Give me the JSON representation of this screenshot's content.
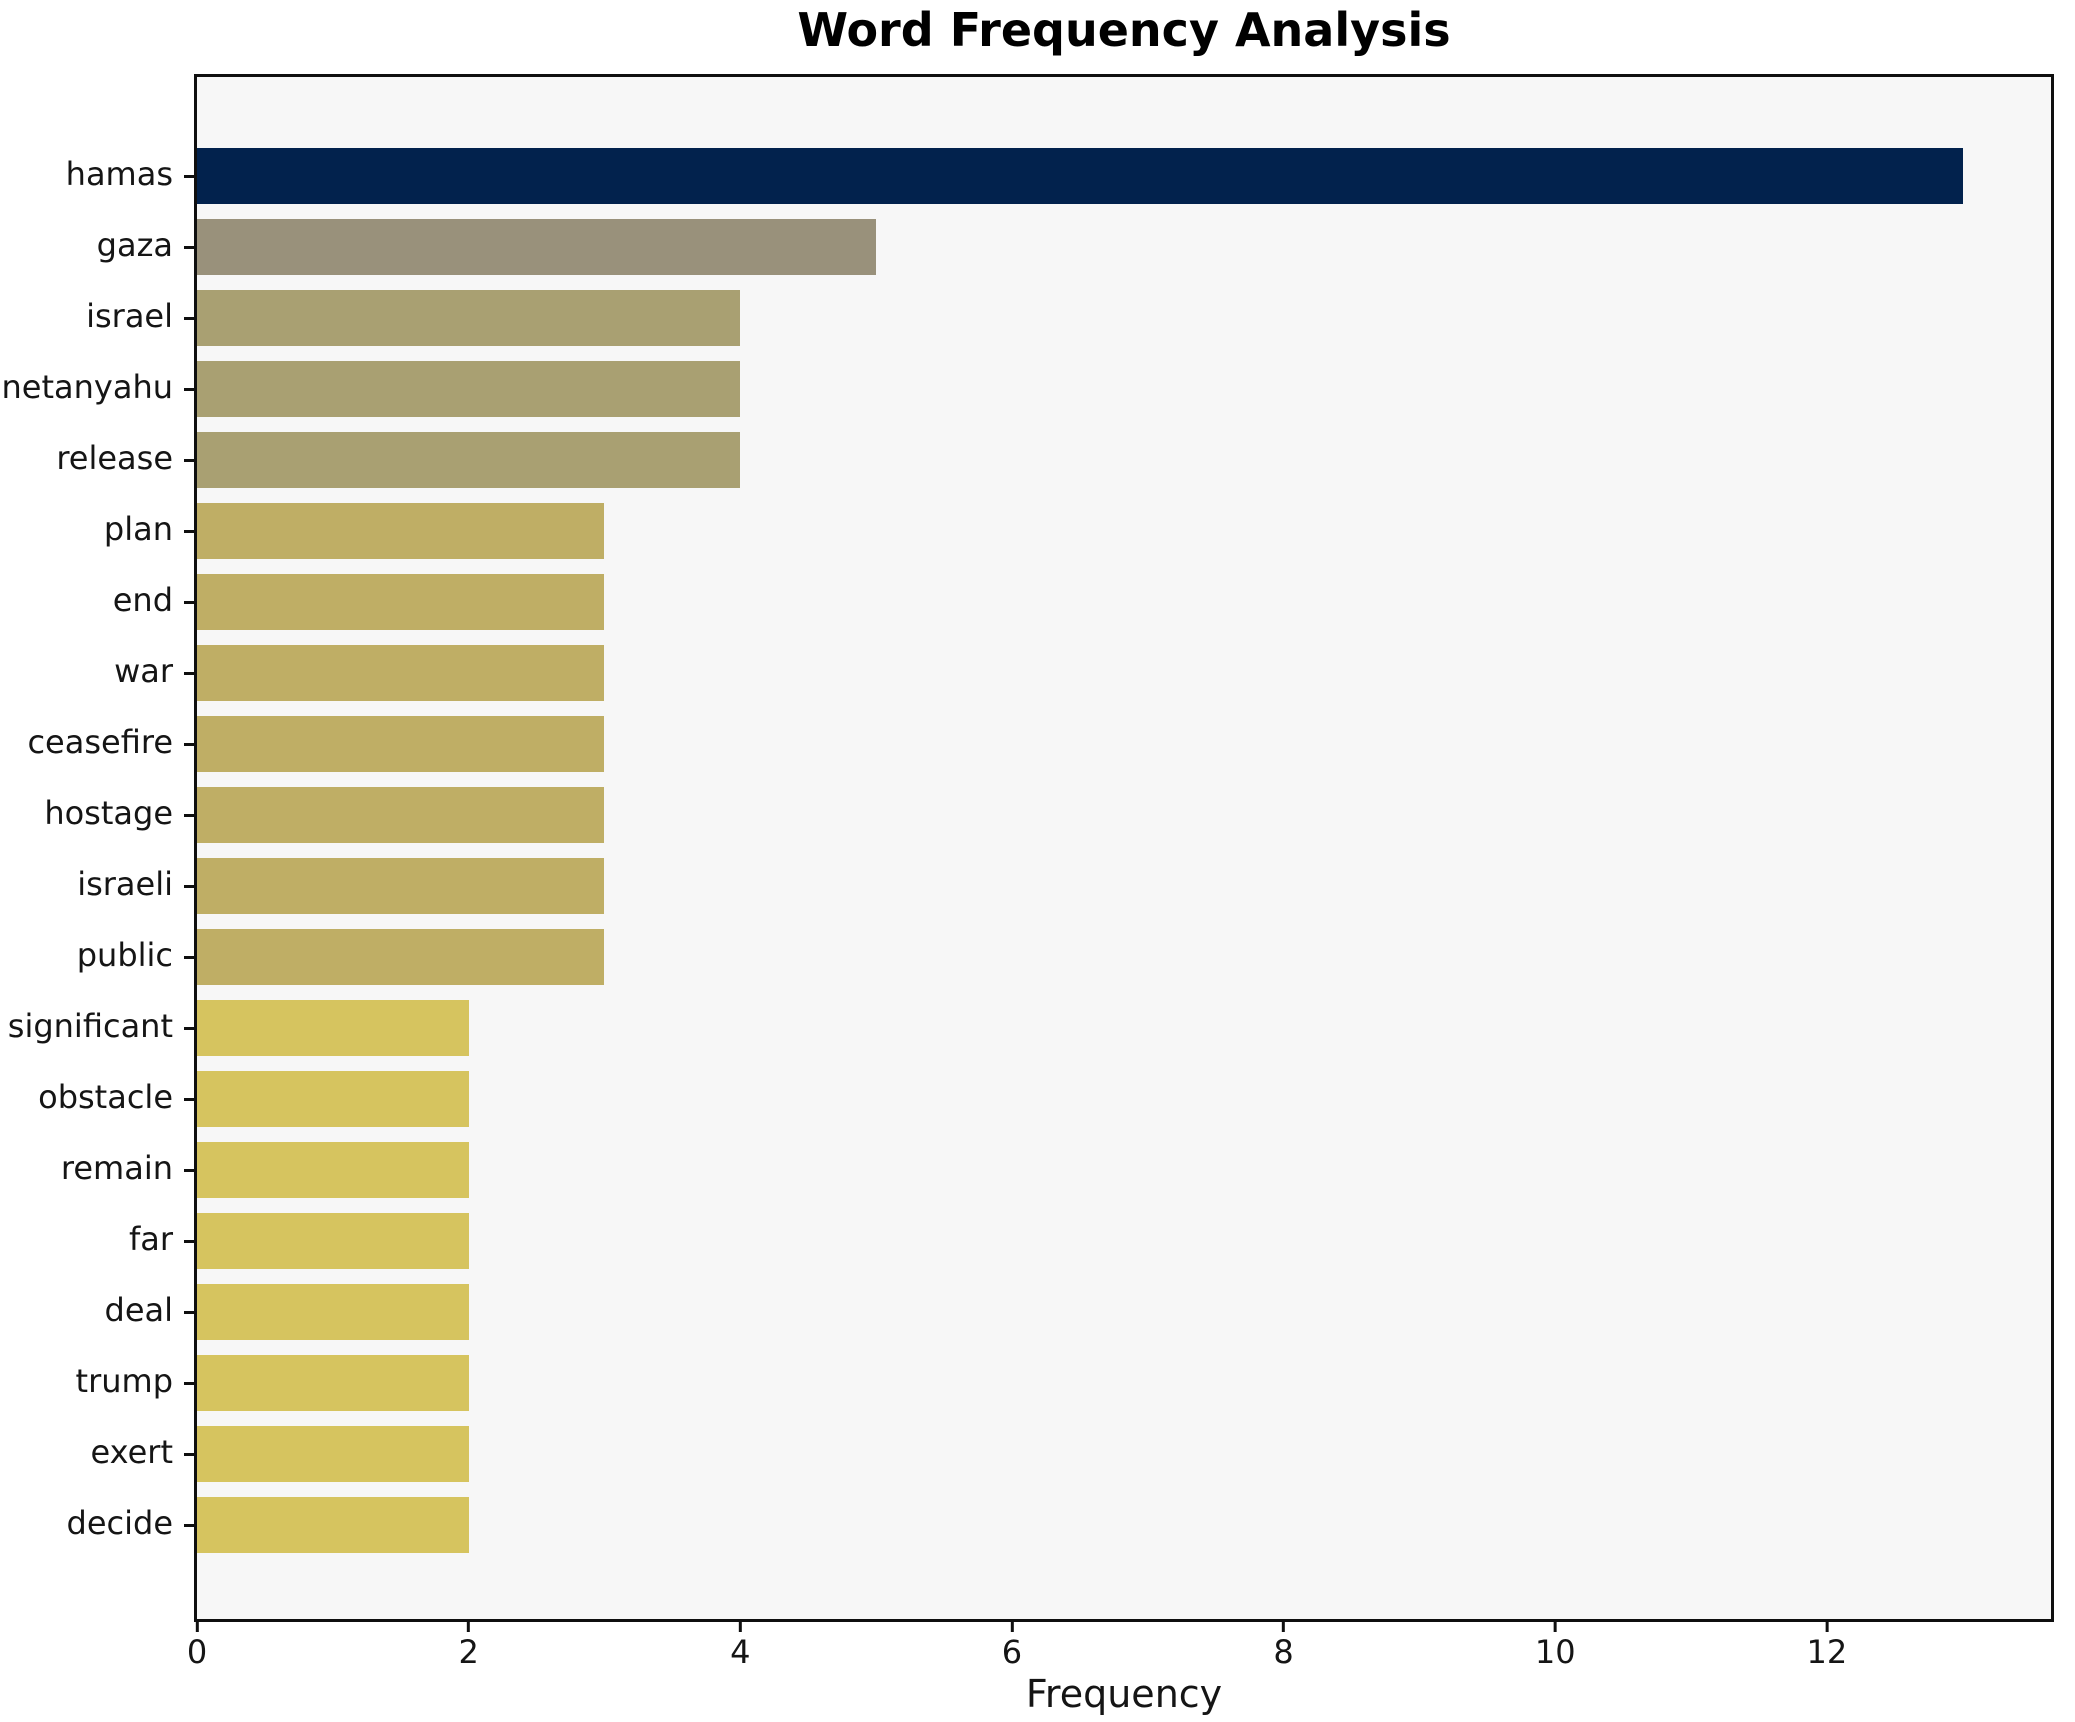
{
  "colors": {
    "figure_background": "#ffffff",
    "plot_background": "#f7f7f7",
    "spine": "#0f0f0f",
    "text": "#151515",
    "bar_value_13": "#02224d",
    "bar_value_5": "#99917b",
    "bar_value_4": "#a9a072",
    "bar_value_3": "#bfae65",
    "bar_value_2": "#d6c45f"
  },
  "chart_data": {
    "type": "bar",
    "orientation": "horizontal",
    "title": "Word Frequency Analysis",
    "xlabel": "Frequency",
    "ylabel": "",
    "grid": false,
    "legend": false,
    "xlim": [
      0,
      13.65
    ],
    "xticks": [
      "0",
      "2",
      "4",
      "6",
      "8",
      "10",
      "12"
    ],
    "xtick_values": [
      0,
      2,
      4,
      6,
      8,
      10,
      12
    ],
    "categories": [
      "hamas",
      "gaza",
      "israel",
      "netanyahu",
      "release",
      "plan",
      "end",
      "war",
      "ceasefire",
      "hostage",
      "israeli",
      "public",
      "significant",
      "obstacle",
      "remain",
      "far",
      "deal",
      "trump",
      "exert",
      "decide"
    ],
    "values": [
      13,
      5,
      4,
      4,
      4,
      3,
      3,
      3,
      3,
      3,
      3,
      3,
      2,
      2,
      2,
      2,
      2,
      2,
      2,
      2
    ],
    "bar_colors": [
      "#02224d",
      "#99917b",
      "#a9a072",
      "#a9a072",
      "#a9a072",
      "#bfae65",
      "#bfae65",
      "#bfae65",
      "#bfae65",
      "#bfae65",
      "#bfae65",
      "#bfae65",
      "#d6c45f",
      "#d6c45f",
      "#d6c45f",
      "#d6c45f",
      "#d6c45f",
      "#d6c45f",
      "#d6c45f",
      "#d6c45f"
    ]
  }
}
